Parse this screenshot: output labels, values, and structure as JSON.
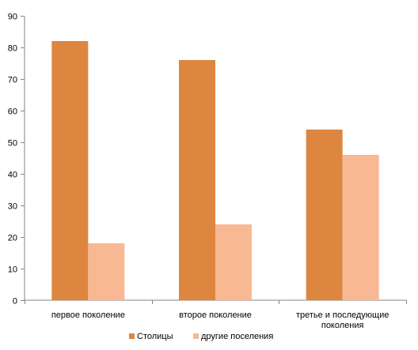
{
  "chart_data": {
    "type": "bar",
    "title": "",
    "xlabel": "",
    "ylabel": "",
    "categories": [
      [
        "первое поколение"
      ],
      [
        "второе поколение"
      ],
      [
        "третье и последующие",
        "поколения"
      ]
    ],
    "series": [
      {
        "name": "Столицы",
        "color": "#dd8640",
        "values": [
          82,
          76,
          54
        ]
      },
      {
        "name": "другие поселения",
        "color": "#f8b894",
        "values": [
          18,
          24,
          46
        ]
      }
    ],
    "ylim": [
      0,
      90
    ],
    "yticks": [
      0,
      10,
      20,
      30,
      40,
      50,
      60,
      70,
      80,
      90
    ],
    "grid": false,
    "legend_position": "bottom"
  }
}
